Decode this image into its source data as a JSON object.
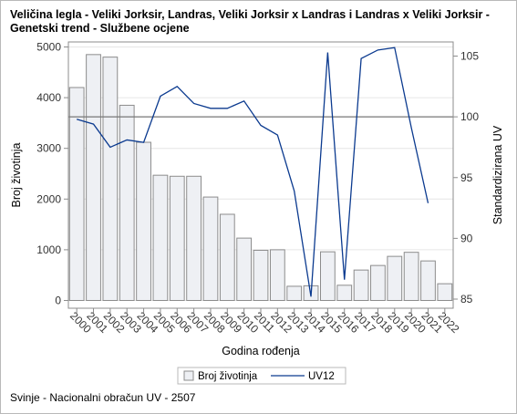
{
  "title": {
    "line1": "Veličina legla - Veliki Jorksir, Landras, Veliki Jorksir x Landras i Landras x Veliki Jorksir -",
    "line2": "Genetski trend - Službene ocjene"
  },
  "footnote": "Svinje - Nacionalni obračun UV - 2507",
  "chart_data": {
    "type": "bar+line",
    "categories": [
      "2000",
      "2001",
      "2002",
      "2003",
      "2004",
      "2005",
      "2006",
      "2007",
      "2008",
      "2009",
      "2010",
      "2011",
      "2012",
      "2013",
      "2014",
      "2015",
      "2016",
      "2017",
      "2018",
      "2019",
      "2020",
      "2021",
      "2022"
    ],
    "xlabel": "Godina rođenja",
    "ylabel_left": "Broj životinja",
    "ylabel_right": "Standardizirana UV",
    "ylim_left": [
      0,
      5000
    ],
    "yticks_left": [
      0,
      1000,
      2000,
      3000,
      4000,
      5000
    ],
    "ylim_right": [
      85,
      105
    ],
    "yticks_right": [
      85,
      90,
      95,
      100,
      105
    ],
    "reference_line_right": 100,
    "series": [
      {
        "name": "Broj životinja",
        "type": "bar",
        "axis": "left",
        "color": "#eef0f4",
        "stroke": "#8c8c8c",
        "values": [
          4200,
          4850,
          4800,
          3850,
          3120,
          2470,
          2450,
          2450,
          2040,
          1700,
          1230,
          990,
          1000,
          280,
          290,
          960,
          300,
          600,
          690,
          870,
          950,
          780,
          330
        ]
      },
      {
        "name": "UV12",
        "type": "line",
        "axis": "right",
        "color": "#0b3a8f",
        "values": [
          99.8,
          99.4,
          97.5,
          98.1,
          97.9,
          101.7,
          102.5,
          101.1,
          100.7,
          100.7,
          101.3,
          99.3,
          98.5,
          93.9,
          85.2,
          105.3,
          86.6,
          104.8,
          105.5,
          105.7,
          99.1,
          92.9,
          null
        ]
      }
    ],
    "legend_position": "bottom",
    "grid": true
  }
}
